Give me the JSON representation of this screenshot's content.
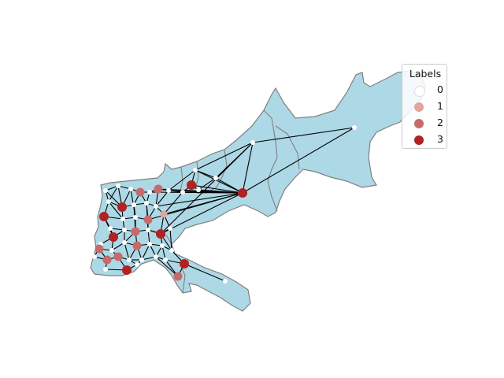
{
  "legend": {
    "title": "Labels",
    "items": [
      {
        "label": "0",
        "color": "#ffffff"
      },
      {
        "label": "1",
        "color": "#e3a4a0"
      },
      {
        "label": "2",
        "color": "#c76a6a"
      },
      {
        "label": "3",
        "color": "#b22222"
      }
    ]
  },
  "colors": {
    "region_fill": "#add8e6",
    "region_outline": "#808080",
    "edge": "#000000"
  }
}
